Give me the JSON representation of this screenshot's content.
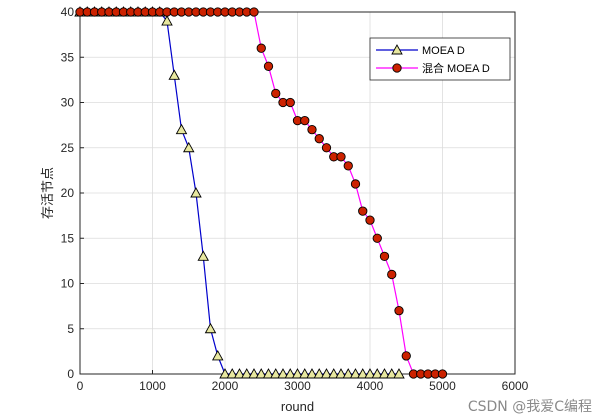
{
  "chart_data": {
    "type": "line",
    "xlabel": "round",
    "ylabel": "存活节点",
    "xlim": [
      0,
      6000
    ],
    "ylim": [
      0,
      40
    ],
    "xticks": [
      0,
      1000,
      2000,
      3000,
      4000,
      5000,
      6000
    ],
    "yticks": [
      0,
      5,
      10,
      15,
      20,
      25,
      30,
      35,
      40
    ],
    "grid": true,
    "legend": "top-right",
    "series": [
      {
        "name": "MOEA D",
        "color": "#0000cc",
        "marker": "triangle",
        "marker_fill": "#e8e8a0",
        "x": [
          0,
          100,
          200,
          300,
          400,
          500,
          600,
          700,
          800,
          900,
          1000,
          1100,
          1200,
          1300,
          1400,
          1500,
          1600,
          1700,
          1800,
          1900,
          2000,
          2100,
          2200,
          2300,
          2400,
          2500,
          2600,
          2700,
          2800,
          2900,
          3000,
          3100,
          3200,
          3300,
          3400,
          3500,
          3600,
          3700,
          3800,
          3900,
          4000,
          4100,
          4200,
          4300,
          4400
        ],
        "y": [
          40,
          40,
          40,
          40,
          40,
          40,
          40,
          40,
          40,
          40,
          40,
          40,
          39,
          33,
          27,
          25,
          20,
          13,
          5,
          2,
          0,
          0,
          0,
          0,
          0,
          0,
          0,
          0,
          0,
          0,
          0,
          0,
          0,
          0,
          0,
          0,
          0,
          0,
          0,
          0,
          0,
          0,
          0,
          0,
          0
        ]
      },
      {
        "name": "混合 MOEA D",
        "color": "#ff00ff",
        "marker": "circle",
        "marker_fill": "#cc2200",
        "x": [
          0,
          100,
          200,
          300,
          400,
          500,
          600,
          700,
          800,
          900,
          1000,
          1100,
          1200,
          1300,
          1400,
          1500,
          1600,
          1700,
          1800,
          1900,
          2000,
          2100,
          2200,
          2300,
          2400,
          2500,
          2600,
          2700,
          2800,
          2900,
          3000,
          3100,
          3200,
          3300,
          3400,
          3500,
          3600,
          3700,
          3800,
          3900,
          4000,
          4100,
          4200,
          4300,
          4400,
          4500,
          4600,
          4700,
          4800,
          4900,
          5000
        ],
        "y": [
          40,
          40,
          40,
          40,
          40,
          40,
          40,
          40,
          40,
          40,
          40,
          40,
          40,
          40,
          40,
          40,
          40,
          40,
          40,
          40,
          40,
          40,
          40,
          40,
          40,
          36,
          34,
          31,
          30,
          30,
          28,
          28,
          27,
          26,
          25,
          24,
          24,
          23,
          21,
          18,
          17,
          15,
          13,
          11,
          7,
          2,
          0,
          0,
          0,
          0,
          0
        ]
      }
    ]
  },
  "watermark": "CSDN @我爱C编程"
}
